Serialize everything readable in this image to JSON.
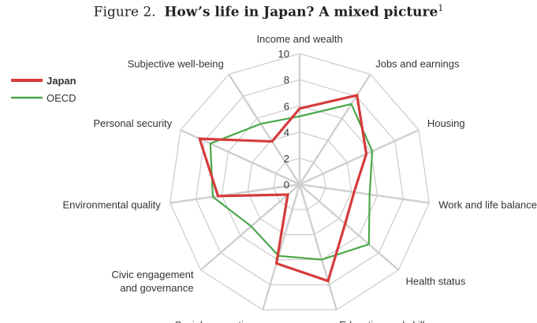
{
  "figure": {
    "prefix": "Figure 2.",
    "title": "How’s life in Japan? A mixed picture",
    "footnote": "1"
  },
  "chart_data": {
    "type": "radar",
    "title": "How’s life in Japan? A mixed picture",
    "axes": [
      [
        "Income and wealth"
      ],
      [
        "Jobs and earnings"
      ],
      [
        "Housing"
      ],
      [
        "Work and life balance"
      ],
      [
        "Health status"
      ],
      [
        "Education and skills"
      ],
      [
        "Social connections"
      ],
      [
        "Civic engagement",
        "and governance"
      ],
      [
        "Environmental quality"
      ],
      [
        "Personal security"
      ],
      [
        "Subjective well-being"
      ]
    ],
    "rlim": [
      0,
      10
    ],
    "ticks": [
      0,
      2,
      4,
      6,
      8,
      10
    ],
    "grid": true,
    "legend_position": "top-left",
    "series": [
      {
        "name": "Japan",
        "color": "#d63b3b",
        "values": [
          5.8,
          8.1,
          5.6,
          4.2,
          4.6,
          7.7,
          6.3,
          1.2,
          6.3,
          8.4,
          3.9
        ]
      },
      {
        "name": "OECD",
        "color": "#4aa84a",
        "values": [
          5.2,
          7.3,
          6.1,
          5.4,
          7.0,
          6.0,
          5.7,
          4.9,
          6.7,
          7.5,
          5.5
        ]
      }
    ]
  }
}
